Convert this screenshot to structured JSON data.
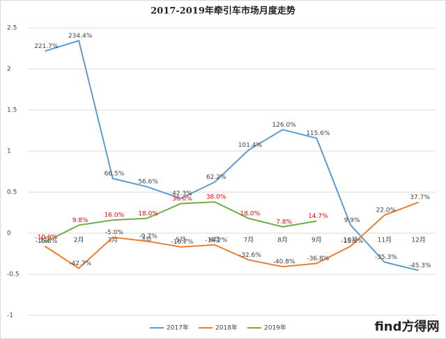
{
  "chart_data": {
    "type": "line",
    "title": "2017-2019年牵引车市场月度走势",
    "categories": [
      "1月",
      "2月",
      "3月",
      "4月",
      "5月",
      "6月",
      "7月",
      "8月",
      "9月",
      "10月",
      "11月",
      "12月"
    ],
    "ylim": [
      -1,
      2.5
    ],
    "yticks": [
      -1,
      -0.5,
      0,
      0.5,
      1,
      1.5,
      2,
      2.5
    ],
    "grid": true,
    "legend": "bottom",
    "watermark": "find方得网",
    "series": [
      {
        "name": "2017年",
        "color": "#5b9bd5",
        "label_color": "#404040",
        "values": [
          2.217,
          2.344,
          0.665,
          0.566,
          0.423,
          0.622,
          1.014,
          1.26,
          1.156,
          0.099,
          -0.353,
          -0.453
        ],
        "value_labels": [
          "221.7%",
          "234.4%",
          "66.5%",
          "56.6%",
          "42.3%",
          "62.2%",
          "101.4%",
          "126.0%",
          "115.6%",
          "9.9%",
          "-35.3%",
          "-45.3%"
        ]
      },
      {
        "name": "2018年",
        "color": "#ed7d31",
        "label_color": "#404040",
        "values": [
          -0.158,
          -0.427,
          -0.05,
          -0.097,
          -0.167,
          -0.142,
          -0.326,
          -0.408,
          -0.368,
          -0.158,
          0.22,
          0.377
        ],
        "value_labels": [
          "-15.8%",
          "-42.7%",
          "-5.0%",
          "-9.7%",
          "-16.7%",
          "-14.2%",
          "-32.6%",
          "-40.8%",
          "-36.8%",
          "-15.8%",
          "22.0%",
          "37.7%"
        ]
      },
      {
        "name": "2019年",
        "color": "#70ad47",
        "label_color": "#ff0000",
        "values": [
          -0.109,
          0.098,
          0.16,
          0.18,
          0.36,
          0.38,
          0.18,
          0.078,
          0.147,
          null,
          null,
          null
        ],
        "value_labels": [
          "-10.9%",
          "9.8%",
          "16.0%",
          "18.0%",
          "36.0%",
          "38.0%",
          "18.0%",
          "7.8%",
          "14.7%",
          null,
          null,
          null
        ]
      }
    ]
  }
}
